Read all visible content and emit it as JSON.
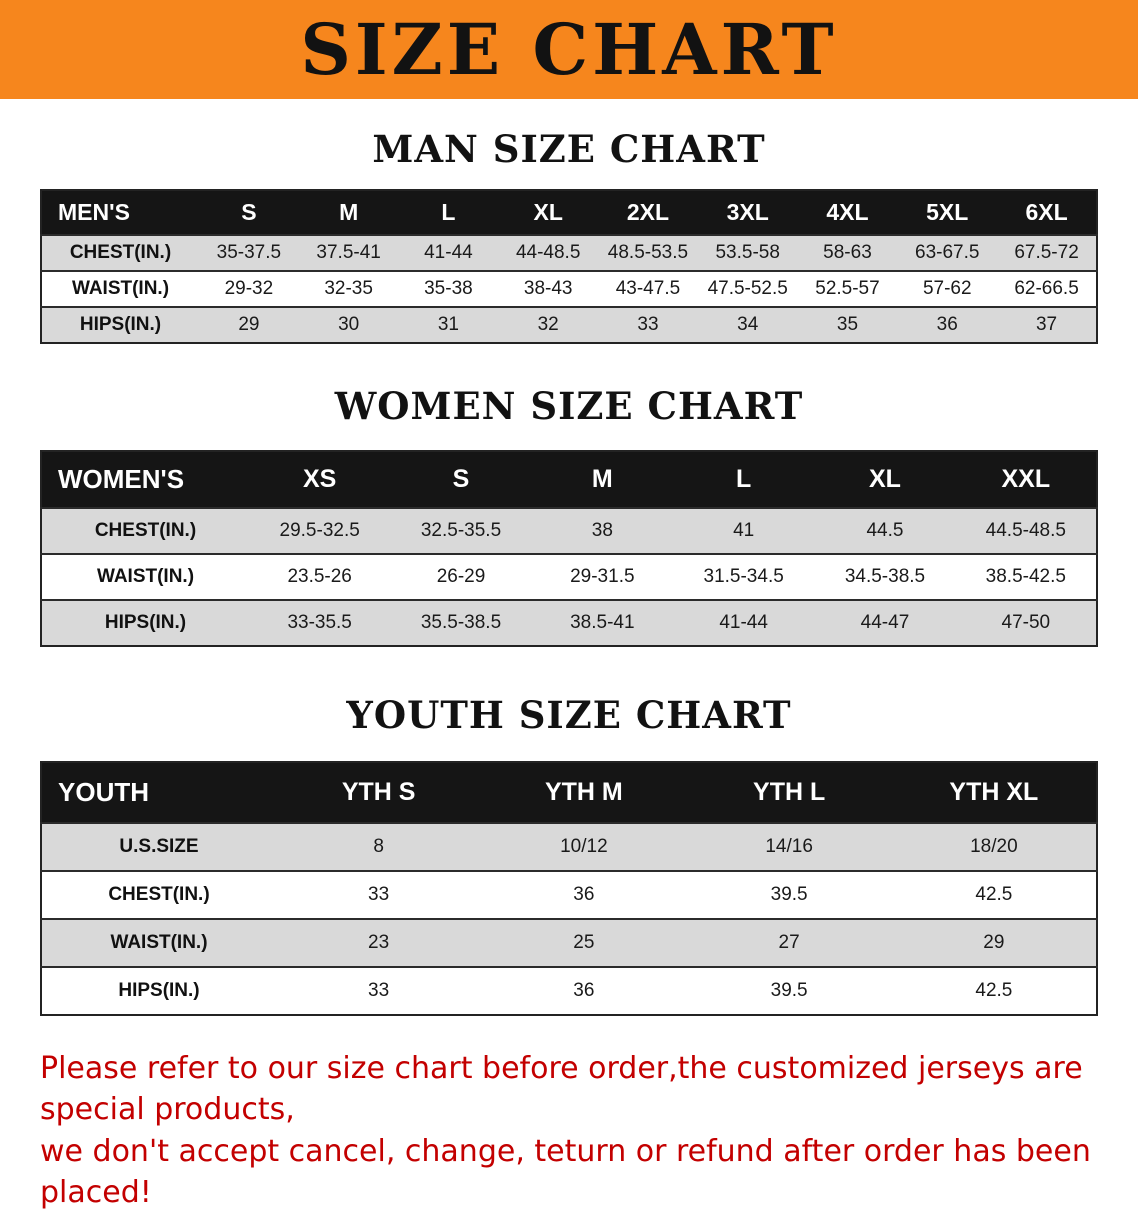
{
  "banner": {
    "title": "SIZE CHART"
  },
  "sections": [
    {
      "heading": "MAN SIZE CHART",
      "table": {
        "label": "MEN'S",
        "columns": [
          "S",
          "M",
          "L",
          "XL",
          "2XL",
          "3XL",
          "4XL",
          "5XL",
          "6XL"
        ],
        "rows": [
          {
            "label": "CHEST(IN.)",
            "values": [
              "35-37.5",
              "37.5-41",
              "41-44",
              "44-48.5",
              "48.5-53.5",
              "53.5-58",
              "58-63",
              "63-67.5",
              "67.5-72"
            ]
          },
          {
            "label": "WAIST(IN.)",
            "values": [
              "29-32",
              "32-35",
              "35-38",
              "38-43",
              "43-47.5",
              "47.5-52.5",
              "52.5-57",
              "57-62",
              "62-66.5"
            ]
          },
          {
            "label": "HIPS(IN.)",
            "values": [
              "29",
              "30",
              "31",
              "32",
              "33",
              "34",
              "35",
              "36",
              "37"
            ]
          }
        ]
      }
    },
    {
      "heading": "WOMEN SIZE CHART",
      "table": {
        "label": "WOMEN'S",
        "columns": [
          "XS",
          "S",
          "M",
          "L",
          "XL",
          "XXL"
        ],
        "rows": [
          {
            "label": "CHEST(IN.)",
            "values": [
              "29.5-32.5",
              "32.5-35.5",
              "38",
              "41",
              "44.5",
              "44.5-48.5"
            ]
          },
          {
            "label": "WAIST(IN.)",
            "values": [
              "23.5-26",
              "26-29",
              "29-31.5",
              "31.5-34.5",
              "34.5-38.5",
              "38.5-42.5"
            ]
          },
          {
            "label": "HIPS(IN.)",
            "values": [
              "33-35.5",
              "35.5-38.5",
              "38.5-41",
              "41-44",
              "44-47",
              "47-50"
            ]
          }
        ]
      }
    },
    {
      "heading": "YOUTH SIZE CHART",
      "table": {
        "label": "YOUTH",
        "columns": [
          "YTH S",
          "YTH M",
          "YTH L",
          "YTH XL"
        ],
        "rows": [
          {
            "label": "U.S.SIZE",
            "values": [
              "8",
              "10/12",
              "14/16",
              "18/20"
            ]
          },
          {
            "label": "CHEST(IN.)",
            "values": [
              "33",
              "36",
              "39.5",
              "42.5"
            ]
          },
          {
            "label": "WAIST(IN.)",
            "values": [
              "23",
              "25",
              "27",
              "29"
            ]
          },
          {
            "label": "HIPS(IN.)",
            "values": [
              "33",
              "36",
              "39.5",
              "42.5"
            ]
          }
        ]
      }
    }
  ],
  "footer": {
    "line1": "Please refer to our size chart before order,the customized jerseys are special products,",
    "line2": "we don't accept cancel, change, teturn or refund after order has been placed!"
  },
  "colors": {
    "banner_bg": "#f6861d",
    "table_header_bg": "#151515",
    "row_alt_bg": "#d9d9d9",
    "notice_red": "#c30000"
  }
}
